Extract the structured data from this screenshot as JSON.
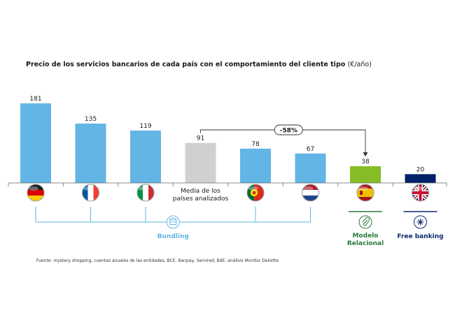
{
  "chart_data": {
    "type": "bar",
    "title": "Precio de los servicios bancarios de cada país con el comportamiento del cliente tipo",
    "title_unit": "(€/año)",
    "categories": [
      {
        "label": "Alemania",
        "flag": "germany-flag",
        "value": 181,
        "color": "#62b5e5",
        "group": "bundling"
      },
      {
        "label": "Francia",
        "flag": "france-flag",
        "value": 135,
        "color": "#62b5e5",
        "group": "bundling"
      },
      {
        "label": "Italia",
        "flag": "italy-flag",
        "value": 119,
        "color": "#62b5e5",
        "group": "bundling"
      },
      {
        "label": "Media de los países analizados",
        "label_lines": [
          "Media de los",
          "países analizados"
        ],
        "flag": "",
        "value": 91,
        "color": "#d0d0d0",
        "group": ""
      },
      {
        "label": "Portugal",
        "flag": "portugal-flag",
        "value": 78,
        "color": "#62b5e5",
        "group": "bundling"
      },
      {
        "label": "Países Bajos",
        "flag": "netherlands-flag",
        "value": 67,
        "color": "#62b5e5",
        "group": "bundling"
      },
      {
        "label": "España",
        "flag": "spain-flag",
        "value": 38,
        "color": "#86bc25",
        "group": "modelo"
      },
      {
        "label": "Reino Unido",
        "flag": "uk-flag",
        "value": 20,
        "color": "#012169",
        "group": "free"
      }
    ],
    "ylim": [
      0,
      181
    ],
    "annotation": {
      "text": "-58%",
      "from": "Media de los países analizados",
      "to": "España"
    },
    "groups": {
      "bundling": {
        "label": "Bundling",
        "color": "#62b5e5",
        "icon": "package-icon"
      },
      "modelo": {
        "label_lines": [
          "Modelo",
          "Relacional"
        ],
        "color": "#2a7a3a",
        "icon": "paperclip-icon"
      },
      "free": {
        "label": "Free banking",
        "color": "#0c2a6b",
        "icon": "asterisk-icon"
      }
    },
    "source": "Fuente: mystery shopping, cuentas anuales de las entidades, BCE, Iberpay, Servired, BdE, análisis Monitor Deloitte"
  }
}
